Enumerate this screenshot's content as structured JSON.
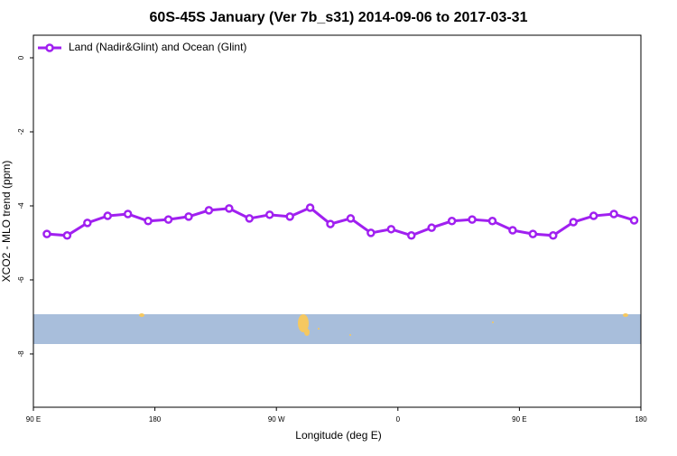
{
  "chart_data": {
    "type": "line",
    "title": "60S-45S January (Ver 7b_s31)   2014-09-06 to 2017-03-31",
    "x_label": "Longitude (deg E)",
    "y_label": "XCO2 - MLO trend (ppm)",
    "x": [
      100,
      115,
      130,
      145,
      160,
      175,
      190,
      205,
      220,
      235,
      250,
      265,
      280,
      295,
      310,
      325,
      340,
      355,
      370,
      385,
      400,
      415,
      430,
      445,
      460,
      475,
      490,
      505,
      520,
      535
    ],
    "series": [
      {
        "name": "Land (Nadir&Glint) and Ocean (Glint)",
        "color": "#a020f0",
        "values": [
          -4.76,
          -4.8,
          -4.46,
          -4.27,
          -4.22,
          -4.41,
          -4.37,
          -4.29,
          -4.12,
          -4.07,
          -4.34,
          -4.24,
          -4.29,
          -4.05,
          -4.49,
          -4.34,
          -4.73,
          -4.63,
          -4.8,
          -4.59,
          -4.41,
          -4.37,
          -4.41,
          -4.66,
          -4.76,
          -4.8,
          -4.44,
          -4.27,
          -4.22,
          -4.39
        ]
      }
    ],
    "xlim": [
      90,
      540
    ],
    "xticks": [
      {
        "value": 90,
        "label": "90 E"
      },
      {
        "value": 180,
        "label": "180"
      },
      {
        "value": 270,
        "label": "90 W"
      },
      {
        "value": 360,
        "label": "0"
      },
      {
        "value": 450,
        "label": "90 E"
      },
      {
        "value": 540,
        "label": "180"
      }
    ],
    "ylim": [
      -9.44,
      0.61
    ],
    "yticks": [
      0,
      -2,
      -4,
      -6,
      -8
    ],
    "legend": "top-left"
  }
}
